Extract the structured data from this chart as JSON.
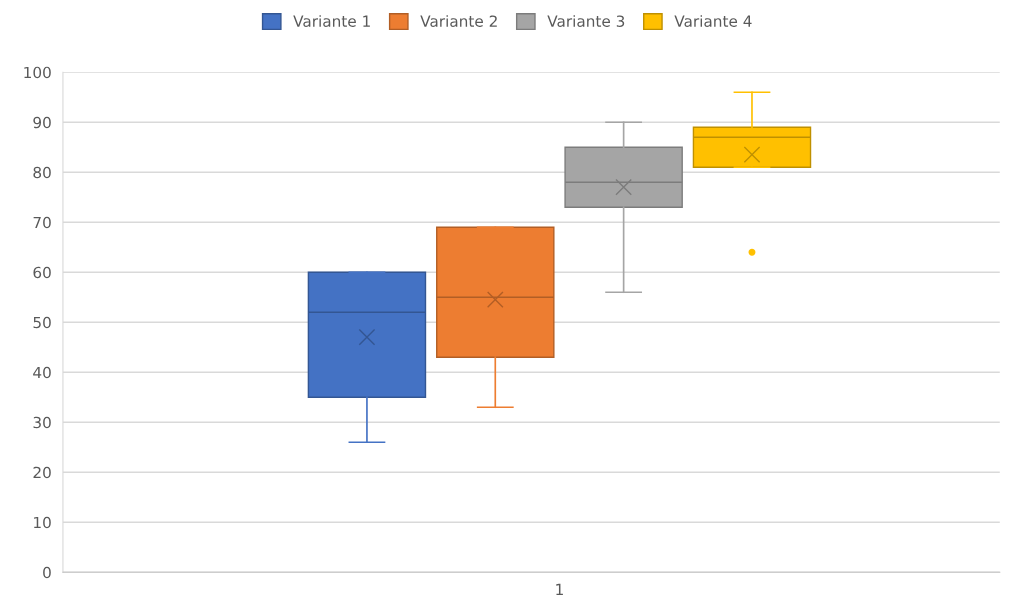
{
  "chart_data": {
    "type": "box",
    "categories": [
      "1"
    ],
    "ylim": [
      0,
      100
    ],
    "yticks": [
      0,
      10,
      20,
      30,
      40,
      50,
      60,
      70,
      80,
      90,
      100
    ],
    "grid": "y",
    "legend": "top",
    "series": [
      {
        "name": "Variante 1",
        "color": "#4472c4",
        "boxes": [
          {
            "low": 26,
            "q1": 35,
            "median": 52,
            "q3": 60,
            "high": 60,
            "mean": 47
          }
        ]
      },
      {
        "name": "Variante 2",
        "color": "#ed7d31",
        "boxes": [
          {
            "low": 33,
            "q1": 43,
            "median": 55,
            "q3": 69,
            "high": 69,
            "mean": 54.5
          }
        ]
      },
      {
        "name": "Variante 3",
        "color": "#a5a5a5",
        "boxes": [
          {
            "low": 56,
            "q1": 73,
            "median": 78,
            "q3": 85,
            "high": 90,
            "mean": 77
          }
        ]
      },
      {
        "name": "Variante 4",
        "color": "#ffc000",
        "boxes": [
          {
            "low": 81,
            "q1": 81,
            "median": 87,
            "q3": 89,
            "high": 96,
            "mean": 83.5,
            "outliers": [
              64
            ]
          }
        ]
      }
    ]
  }
}
